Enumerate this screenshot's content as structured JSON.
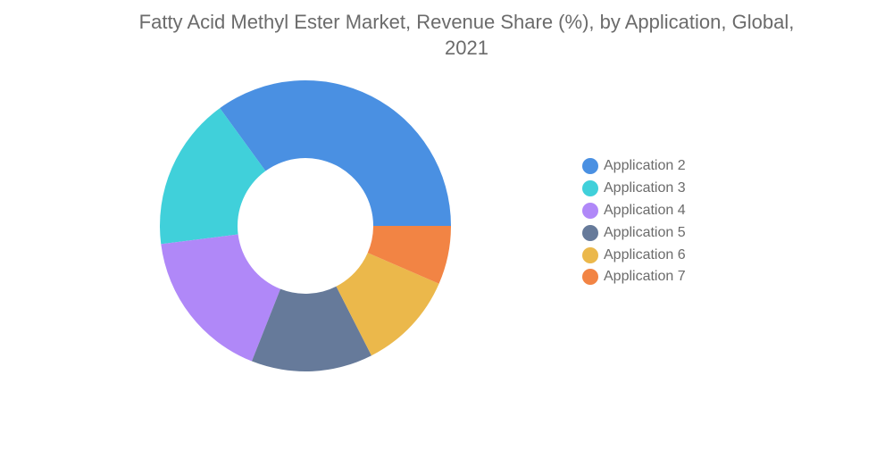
{
  "chart_data": {
    "type": "pie",
    "title": "Fatty Acid Methyl Ester Market, Revenue Share (%), by Application, Global, 2021",
    "categories": [
      "Application 2",
      "Application 3",
      "Application 4",
      "Application 5",
      "Application 6",
      "Application 7"
    ],
    "values": [
      35.0,
      17.0,
      17.0,
      13.5,
      11.0,
      6.5
    ],
    "colors": [
      "#4a90e2",
      "#40d0da",
      "#b088f8",
      "#667a9a",
      "#ebb84b",
      "#f28444"
    ],
    "legend_position": "right",
    "donut": true
  }
}
